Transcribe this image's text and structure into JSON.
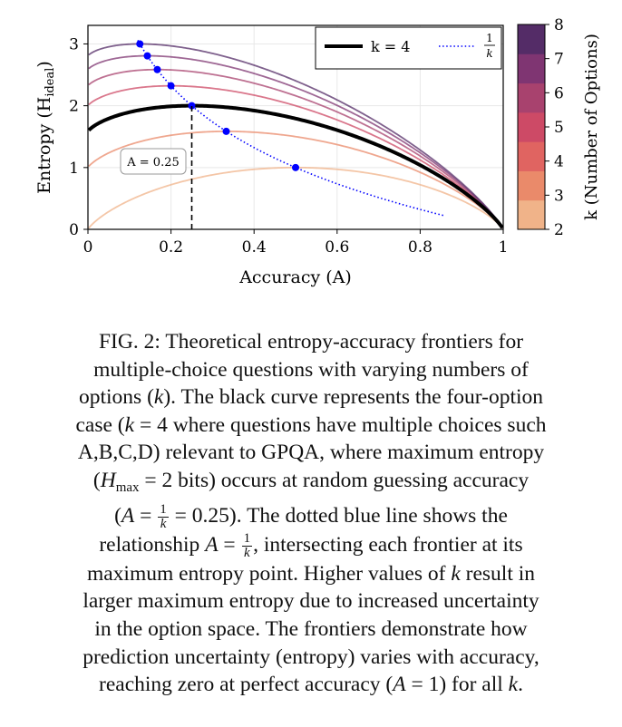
{
  "chart_data": {
    "type": "line",
    "xlabel": "Accuracy (A)",
    "ylabel_main": "Entropy (H",
    "ylabel_sub": "ideal",
    "ylabel_close": ")",
    "xlim": [
      0,
      1
    ],
    "ylim": [
      0,
      3.3
    ],
    "xticks": [
      0,
      0.2,
      0.4,
      0.6,
      0.8,
      1
    ],
    "xtick_labels": [
      "0",
      "0.2",
      "0.4",
      "0.6",
      "0.8",
      "1"
    ],
    "yticks": [
      0,
      1,
      2,
      3
    ],
    "ytick_labels": [
      "0",
      "1",
      "2",
      "3"
    ],
    "grid": true,
    "series": [
      {
        "name": "k=2",
        "k": 2,
        "color": "#f0b389",
        "curve": "H(A) = -A log2 A - (1-A) log2((1-A)/(k-1))"
      },
      {
        "name": "k=3",
        "k": 3,
        "color": "#ea8a6a"
      },
      {
        "name": "k=5",
        "k": 5,
        "color": "#cd4a66"
      },
      {
        "name": "k=6",
        "k": 6,
        "color": "#a8426e"
      },
      {
        "name": "k=7",
        "k": 7,
        "color": "#7f3572"
      },
      {
        "name": "k=8",
        "k": 8,
        "color": "#542c67"
      },
      {
        "name": "k = 4",
        "k": 4,
        "color": "#000000",
        "highlight": true
      }
    ],
    "dotted_series": {
      "name": "1/k",
      "color": "#0000ff",
      "x_range": [
        0.12,
        0.86
      ]
    },
    "max_points": [
      {
        "k": 2,
        "x": 0.5,
        "y": 1.0
      },
      {
        "k": 3,
        "x": 0.333,
        "y": 1.585
      },
      {
        "k": 4,
        "x": 0.25,
        "y": 2.0
      },
      {
        "k": 5,
        "x": 0.2,
        "y": 2.322
      },
      {
        "k": 6,
        "x": 0.167,
        "y": 2.585
      },
      {
        "k": 7,
        "x": 0.143,
        "y": 2.807
      },
      {
        "k": 8,
        "x": 0.125,
        "y": 3.0
      }
    ],
    "annotation": {
      "text": "A = 0.25",
      "x": 0.25
    },
    "legend": {
      "position": "top-right",
      "entries": [
        "k = 4",
        "1/k"
      ],
      "frac_num": "1",
      "frac_den": "k"
    },
    "colorbar": {
      "label": "k (Number of Options)",
      "ticks": [
        2,
        3,
        4,
        5,
        6,
        7,
        8
      ],
      "tick_labels": [
        "2",
        "3",
        "4",
        "5",
        "6",
        "7",
        "8"
      ],
      "colors": [
        "#f0b389",
        "#ea8a6a",
        "#e06461",
        "#cd4a66",
        "#a8426e",
        "#7f3572",
        "#542c67"
      ]
    }
  },
  "caption": {
    "l1": "FIG. 2: Theoretical entropy-accuracy frontiers for",
    "l2": "multiple-choice questions with varying numbers of",
    "l3a": "options (",
    "k": "k",
    "l3b": "). The black curve represents the four-option",
    "l4a": "case (",
    "l4b": " = 4 where questions have multiple choices such",
    "l5": "A,B,C,D) relevant to GPQA, where maximum entropy",
    "l6a": "(",
    "H": "H",
    "max": "max",
    "l6b": " = 2 bits) occurs at random guessing accuracy",
    "l7a": "(",
    "A": "A",
    "eq": " = ",
    "one": "1",
    "l7b": " = 0.25). The dotted blue line shows the",
    "l8a": "relationship ",
    "l8b": ", intersecting each frontier at its",
    "l9a": "maximum entropy point. Higher values of ",
    "l9b": " result in",
    "l10": "larger maximum entropy due to increased uncertainty",
    "l11": "in the option space. The frontiers demonstrate how",
    "l12": "prediction uncertainty (entropy) varies with accuracy,",
    "l13a": "reaching zero at perfect accuracy (",
    "l13b": " = 1) for all ",
    "l13c": "."
  }
}
